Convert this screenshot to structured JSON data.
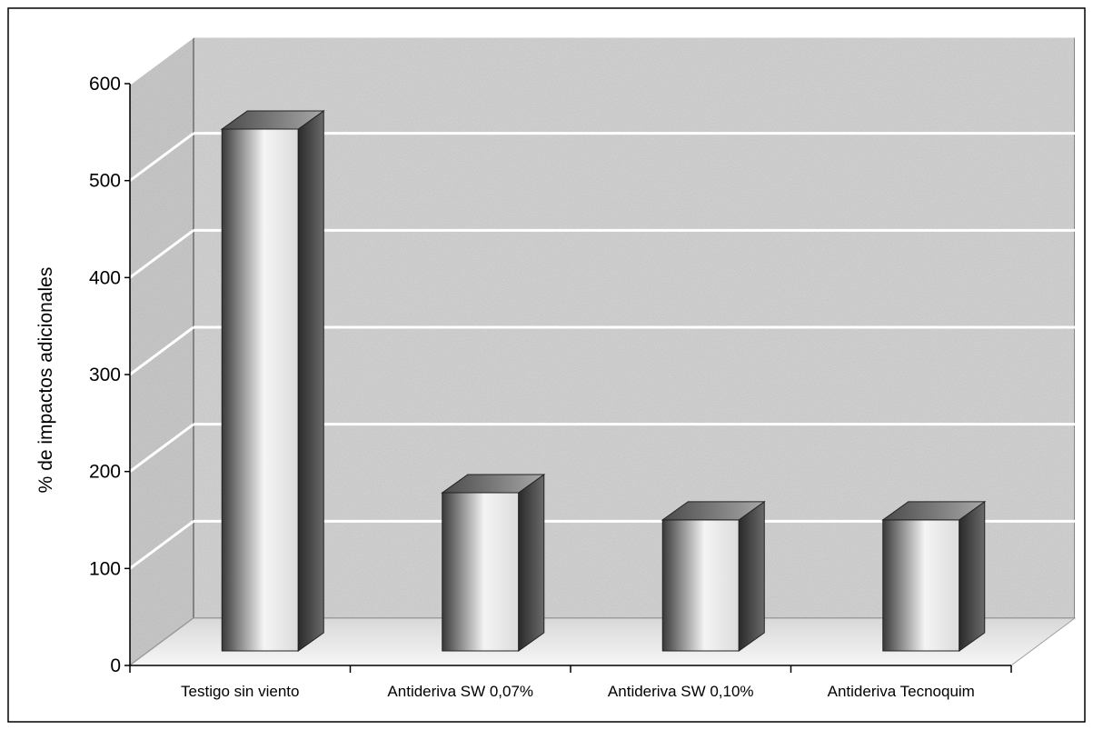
{
  "chart_data": {
    "type": "bar",
    "style": "3d-cylinder-like bars, textured gray back wall",
    "title": "",
    "xlabel": "",
    "ylabel": "% de impactos adicionales",
    "ylim": [
      0,
      600
    ],
    "yticks": [
      "0",
      "100",
      "200",
      "300",
      "400",
      "500",
      "600"
    ],
    "grid": true,
    "legend": "none",
    "categories": [
      "Testigo sin viento",
      "Antideriva SW 0,07%",
      "Antideriva SW 0,10%",
      "Antideriva Tecnoquim"
    ],
    "values": [
      540,
      165,
      137,
      137
    ]
  },
  "colors": {
    "wall": "#d4d4d4",
    "floor": "#e4e4e4",
    "bar_dark": "#3a3a3a",
    "bar_light": "#f2f2f2",
    "gridline": "#ffffff",
    "axis": "#000000"
  }
}
